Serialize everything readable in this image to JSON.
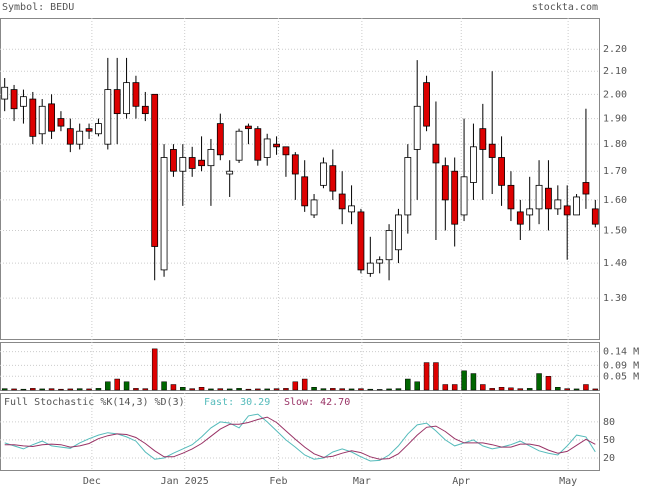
{
  "header": {
    "symbol": "Symbol: BEDU",
    "site": "stockta.com"
  },
  "chart_data": [
    {
      "type": "candlestick",
      "log_scale": true,
      "grid": true,
      "up_color": "#ffffff",
      "down_color": "#dd0000",
      "xlim": [
        -0.5,
        63.5
      ],
      "xticks": [
        {
          "value": 9.3,
          "label": "Dec"
        },
        {
          "value": 19.2,
          "label": "Jan 2025"
        },
        {
          "value": 29.2,
          "label": "Feb"
        },
        {
          "value": 38.1,
          "label": "Mar"
        },
        {
          "value": 48.7,
          "label": "Apr"
        },
        {
          "value": 60.1,
          "label": "May"
        }
      ],
      "ylim": [
        1.19,
        2.35
      ],
      "yticks": [
        {
          "value": 1.3,
          "label": "1.30"
        },
        {
          "value": 1.4,
          "label": "1.40"
        },
        {
          "value": 1.5,
          "label": "1.50"
        },
        {
          "value": 1.6,
          "label": "1.60"
        },
        {
          "value": 1.7,
          "label": "1.70"
        },
        {
          "value": 1.8,
          "label": "1.80"
        },
        {
          "value": 1.9,
          "label": "1.90"
        },
        {
          "value": 2.0,
          "label": "2.00"
        },
        {
          "value": 2.1,
          "label": "2.10"
        },
        {
          "value": 2.2,
          "label": "2.20"
        }
      ],
      "open": [
        1.98,
        2.02,
        1.95,
        1.98,
        1.84,
        1.96,
        1.9,
        1.86,
        1.8,
        1.86,
        1.84,
        1.8,
        2.02,
        1.92,
        2.05,
        1.95,
        2.0,
        1.38,
        1.78,
        1.7,
        1.75,
        1.74,
        1.72,
        1.88,
        1.69,
        1.74,
        1.87,
        1.86,
        1.75,
        1.8,
        1.79,
        1.76,
        1.68,
        1.55,
        1.65,
        1.72,
        1.62,
        1.56,
        1.56,
        1.37,
        1.4,
        1.41,
        1.44,
        1.55,
        1.78,
        2.05,
        1.8,
        1.72,
        1.7,
        1.55,
        1.66,
        1.86,
        1.8,
        1.75,
        1.65,
        1.56,
        1.55,
        1.57,
        1.64,
        1.57,
        1.58,
        1.55,
        1.66,
        1.57
      ],
      "high": [
        2.07,
        2.04,
        2.02,
        2.01,
        1.98,
        2.0,
        1.93,
        1.9,
        1.88,
        1.88,
        1.9,
        2.16,
        2.16,
        2.16,
        2.08,
        2.01,
        2.0,
        1.8,
        1.8,
        1.8,
        1.79,
        1.83,
        1.82,
        1.92,
        1.74,
        1.86,
        1.88,
        1.87,
        1.84,
        1.83,
        1.79,
        1.77,
        1.74,
        1.62,
        1.75,
        1.78,
        1.7,
        1.65,
        1.57,
        1.48,
        1.42,
        1.52,
        1.57,
        1.8,
        2.15,
        2.08,
        1.97,
        1.75,
        1.75,
        1.9,
        1.88,
        1.96,
        2.1,
        1.83,
        1.7,
        1.6,
        1.68,
        1.74,
        1.74,
        1.65,
        1.65,
        1.62,
        1.94,
        1.6
      ],
      "low": [
        1.93,
        1.89,
        1.88,
        1.8,
        1.8,
        1.82,
        1.85,
        1.77,
        1.78,
        1.82,
        1.83,
        1.78,
        1.8,
        1.9,
        1.9,
        1.89,
        1.35,
        1.36,
        1.68,
        1.58,
        1.68,
        1.7,
        1.58,
        1.74,
        1.61,
        1.73,
        1.8,
        1.72,
        1.72,
        1.76,
        1.68,
        1.6,
        1.56,
        1.54,
        1.64,
        1.6,
        1.52,
        1.52,
        1.37,
        1.36,
        1.37,
        1.35,
        1.4,
        1.49,
        1.6,
        1.85,
        1.47,
        1.5,
        1.45,
        1.53,
        1.6,
        1.6,
        1.62,
        1.58,
        1.53,
        1.47,
        1.5,
        1.52,
        1.5,
        1.55,
        1.41,
        1.55,
        1.57,
        1.51
      ],
      "close": [
        2.03,
        1.94,
        1.99,
        1.83,
        1.95,
        1.85,
        1.87,
        1.8,
        1.85,
        1.85,
        1.88,
        2.02,
        1.92,
        2.05,
        1.95,
        1.92,
        1.45,
        1.75,
        1.7,
        1.75,
        1.71,
        1.72,
        1.78,
        1.76,
        1.7,
        1.85,
        1.86,
        1.74,
        1.82,
        1.79,
        1.76,
        1.69,
        1.58,
        1.6,
        1.73,
        1.63,
        1.57,
        1.58,
        1.38,
        1.4,
        1.41,
        1.5,
        1.55,
        1.75,
        1.95,
        1.87,
        1.73,
        1.6,
        1.52,
        1.68,
        1.79,
        1.78,
        1.75,
        1.65,
        1.57,
        1.52,
        1.57,
        1.65,
        1.57,
        1.6,
        1.55,
        1.61,
        1.62,
        1.52
      ]
    },
    {
      "type": "volume",
      "grid": true,
      "up_color": "#006600",
      "down_color": "#dd0000",
      "ylim": [
        0,
        0.175
      ],
      "yticks": [
        {
          "value": 0.05,
          "label": "0.05 M"
        },
        {
          "value": 0.09,
          "label": "0.09 M"
        },
        {
          "value": 0.14,
          "label": "0.14 M"
        }
      ],
      "values": [
        0.005,
        0.004,
        0.003,
        0.006,
        0.004,
        0.005,
        0.003,
        0.004,
        0.005,
        0.004,
        0.006,
        0.03,
        0.04,
        0.03,
        0.006,
        0.005,
        0.15,
        0.03,
        0.02,
        0.01,
        0.005,
        0.01,
        0.004,
        0.005,
        0.004,
        0.006,
        0.003,
        0.004,
        0.004,
        0.005,
        0.006,
        0.03,
        0.04,
        0.01,
        0.005,
        0.006,
        0.005,
        0.004,
        0.005,
        0.003,
        0.002,
        0.004,
        0.005,
        0.04,
        0.03,
        0.1,
        0.1,
        0.02,
        0.02,
        0.07,
        0.06,
        0.02,
        0.006,
        0.01,
        0.008,
        0.005,
        0.006,
        0.06,
        0.05,
        0.01,
        0.005,
        0.004,
        0.02,
        0.004
      ]
    },
    {
      "type": "line",
      "title": "Full Stochastic %K(14,3) %D(3)",
      "grid": true,
      "ylim": [
        0,
        128
      ],
      "yticks": [
        20,
        50,
        80
      ],
      "series": [
        {
          "name": "Fast: 30.29",
          "color": "#55bbbb",
          "values": [
            45,
            40,
            35,
            42,
            48,
            40,
            38,
            36,
            45,
            52,
            58,
            62,
            60,
            55,
            48,
            30,
            18,
            20,
            28,
            35,
            42,
            55,
            70,
            80,
            78,
            70,
            90,
            93,
            80,
            65,
            50,
            38,
            25,
            18,
            20,
            30,
            35,
            30,
            22,
            15,
            16,
            25,
            40,
            60,
            75,
            78,
            65,
            50,
            40,
            45,
            50,
            40,
            35,
            38,
            42,
            48,
            40,
            32,
            28,
            25,
            40,
            58,
            55,
            30.29
          ]
        },
        {
          "name": "Slow: 42.70",
          "color": "#993366",
          "values": [
            42,
            42,
            40,
            39,
            42,
            43,
            42,
            38,
            40,
            44,
            52,
            57,
            60,
            59,
            54,
            44,
            32,
            22,
            22,
            28,
            35,
            44,
            56,
            68,
            76,
            76,
            79,
            84,
            88,
            79,
            65,
            51,
            38,
            27,
            21,
            23,
            28,
            32,
            29,
            22,
            18,
            19,
            27,
            42,
            58,
            71,
            73,
            64,
            52,
            45,
            45,
            45,
            42,
            38,
            38,
            43,
            43,
            40,
            33,
            28,
            31,
            41,
            51,
            42.7
          ]
        }
      ]
    }
  ]
}
